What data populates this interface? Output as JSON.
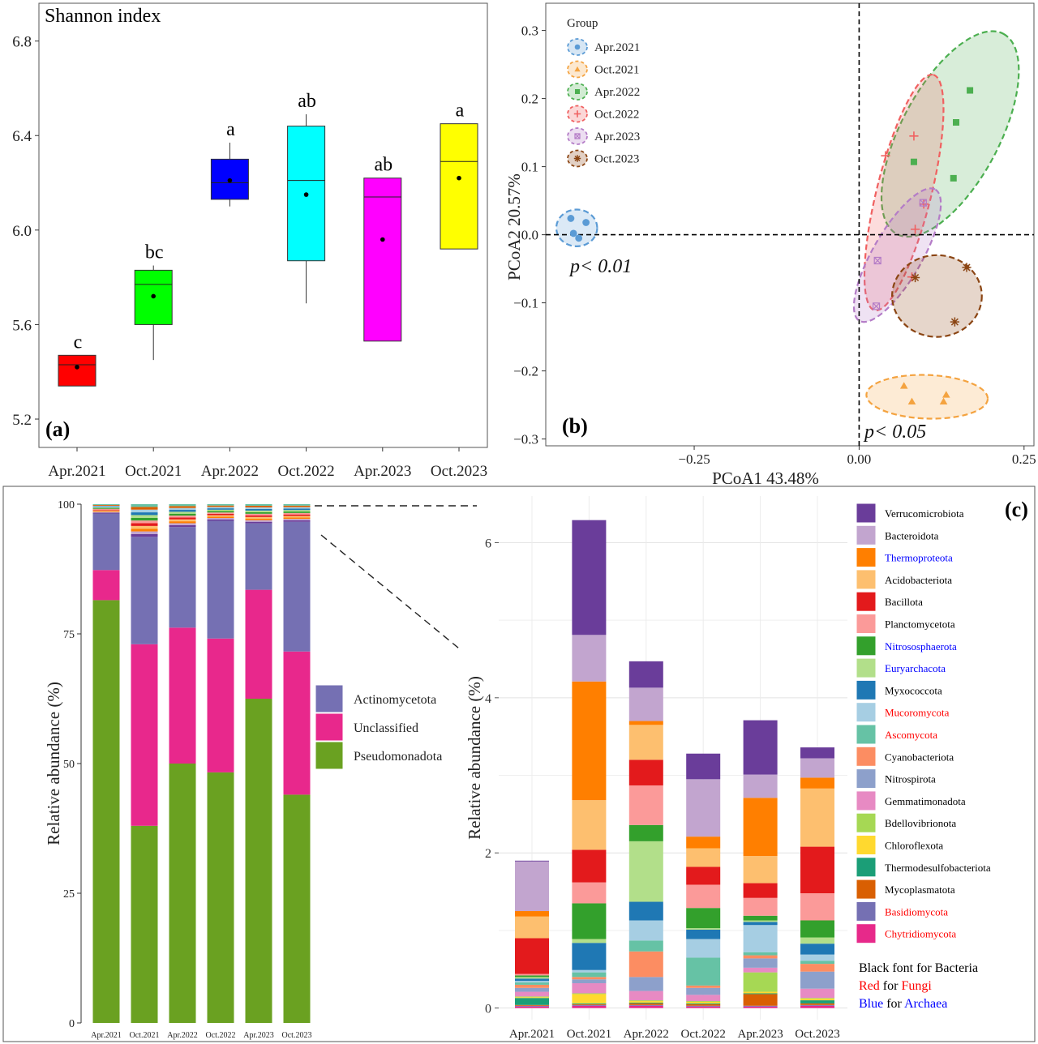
{
  "chart_data": [
    {
      "panel": "a",
      "type": "box",
      "title": "Shannon index",
      "panel_label": "(a)",
      "categories": [
        "Apr.2021",
        "Oct.2021",
        "Apr.2022",
        "Oct.2022",
        "Apr.2023",
        "Oct.2023"
      ],
      "ylim": [
        5.08,
        6.96
      ],
      "yticks": [
        5.2,
        5.6,
        6.0,
        6.4,
        6.8
      ],
      "ytick_labels": [
        "5.2",
        "5.6",
        "6.0",
        "6.4",
        "6.8"
      ],
      "boxes": [
        {
          "q1": 5.34,
          "q3": 5.47,
          "median": 5.43,
          "mean": 5.42,
          "wlo": 5.34,
          "whi": 5.47,
          "color": "#ff0000",
          "letter": "c"
        },
        {
          "q1": 5.6,
          "q3": 5.83,
          "median": 5.77,
          "mean": 5.72,
          "wlo": 5.45,
          "whi": 5.85,
          "color": "#00ff00",
          "letter": "bc"
        },
        {
          "q1": 6.13,
          "q3": 6.3,
          "median": 6.2,
          "mean": 6.21,
          "wlo": 6.1,
          "whi": 6.37,
          "color": "#0000ff",
          "letter": "a"
        },
        {
          "q1": 5.87,
          "q3": 6.44,
          "median": 6.21,
          "mean": 6.15,
          "wlo": 5.69,
          "whi": 6.49,
          "color": "#00ffff",
          "letter": "ab"
        },
        {
          "q1": 5.53,
          "q3": 6.22,
          "median": 6.14,
          "mean": 5.96,
          "wlo": 5.53,
          "whi": 6.22,
          "color": "#ff00ff",
          "letter": "ab"
        },
        {
          "q1": 5.92,
          "q3": 6.45,
          "median": 6.29,
          "mean": 6.22,
          "wlo": 5.92,
          "whi": 6.45,
          "color": "#ffff00",
          "letter": "a"
        }
      ]
    },
    {
      "panel": "b",
      "type": "scatter",
      "panel_label": "(b)",
      "xlabel": "PCoA1 43.48%",
      "ylabel": "PCoA2 20.57%",
      "xlim": [
        -0.475,
        0.265
      ],
      "ylim": [
        -0.31,
        0.34
      ],
      "xticks": [
        -0.25,
        0.0,
        0.25
      ],
      "xtick_labels": [
        "−0.25",
        "0.00",
        "0.25"
      ],
      "yticks": [
        -0.3,
        -0.2,
        -0.1,
        0.0,
        0.1,
        0.2,
        0.3
      ],
      "ytick_labels": [
        "−0.3",
        "−0.2",
        "−0.1",
        "0.0",
        "0.1",
        "0.2",
        "0.3"
      ],
      "legend_title": "Group",
      "legend_position": "top-left",
      "annotations": [
        "p< 0.01",
        "p< 0.05"
      ],
      "groups": [
        {
          "name": "Apr.2021",
          "color": "#5b9bd5",
          "marker": "circle",
          "points": [
            [
              -0.437,
              0.024
            ],
            [
              -0.414,
              0.018
            ],
            [
              -0.425,
              -0.005
            ],
            [
              -0.433,
              0.002
            ]
          ],
          "ellipse": {
            "cx": -0.428,
            "cy": 0.01,
            "rx": 0.031,
            "ry": 0.027,
            "angle": 0
          }
        },
        {
          "name": "Oct.2021",
          "color": "#f4a340",
          "marker": "triangle",
          "points": [
            [
              0.068,
              -0.222
            ],
            [
              0.08,
              -0.245
            ],
            [
              0.132,
              -0.235
            ],
            [
              0.128,
              -0.245
            ]
          ],
          "ellipse": {
            "cx": 0.103,
            "cy": -0.238,
            "rx": 0.092,
            "ry": 0.032,
            "angle": -2
          }
        },
        {
          "name": "Apr.2022",
          "color": "#4caf50",
          "marker": "square",
          "points": [
            [
              0.083,
              0.107
            ],
            [
              0.143,
              0.083
            ],
            [
              0.147,
              0.165
            ],
            [
              0.168,
              0.212
            ]
          ],
          "ellipse": {
            "cx": 0.138,
            "cy": 0.148,
            "rx": 0.172,
            "ry": 0.072,
            "angle": 62
          }
        },
        {
          "name": "Oct.2022",
          "color": "#f06060",
          "marker": "plus",
          "points": [
            [
              0.04,
              0.116
            ],
            [
              0.083,
              0.145
            ],
            [
              0.098,
              0.045
            ],
            [
              0.085,
              0.008
            ],
            [
              0.08,
              -0.062
            ]
          ],
          "ellipse": {
            "cx": 0.068,
            "cy": 0.062,
            "rx": 0.184,
            "ry": 0.04,
            "angle": 76
          }
        },
        {
          "name": "Apr.2023",
          "color": "#b47cc7",
          "marker": "boxx",
          "points": [
            [
              0.028,
              -0.038
            ],
            [
              0.026,
              -0.105
            ],
            [
              0.097,
              0.047
            ]
          ],
          "ellipse": {
            "cx": 0.058,
            "cy": -0.03,
            "rx": 0.115,
            "ry": 0.036,
            "angle": 60
          }
        },
        {
          "name": "Oct.2023",
          "color": "#8b4513",
          "marker": "star",
          "points": [
            [
              0.163,
              -0.048
            ],
            [
              0.145,
              -0.128
            ],
            [
              0.085,
              -0.063
            ]
          ],
          "ellipse": {
            "cx": 0.118,
            "cy": -0.09,
            "rx": 0.068,
            "ry": 0.06,
            "angle": 0
          }
        }
      ]
    },
    {
      "panel": "c-left",
      "type": "stacked_bar",
      "ylabel": "Relative abundance (%)",
      "ylim": [
        0,
        100
      ],
      "yticks": [
        0,
        25,
        50,
        75,
        100
      ],
      "ytick_labels": [
        "0",
        "25",
        "50",
        "75",
        "100"
      ],
      "categories": [
        "Apr.2021",
        "Oct.2021",
        "Apr.2022",
        "Oct.2022",
        "Apr.2023",
        "Oct.2023"
      ],
      "series": [
        {
          "name": "Pseudomonadota",
          "color": "#6aa121",
          "values": [
            81.5,
            38.0,
            50.0,
            48.3,
            62.5,
            44.0
          ]
        },
        {
          "name": "Unclassified",
          "color": "#e8288c",
          "values": [
            5.8,
            35.0,
            26.2,
            25.8,
            21.0,
            27.6
          ]
        },
        {
          "name": "Actinomycetota",
          "color": "#7570b3",
          "values": [
            10.9,
            20.7,
            19.4,
            22.7,
            12.8,
            25.0
          ]
        }
      ],
      "remainder_colors": [
        "#6a3d9a",
        "#c2a5cf",
        "#ff7f00",
        "#fdbf6f",
        "#e31a1c",
        "#fb9a99",
        "#33a02c",
        "#b2df8a",
        "#1f78b4",
        "#a6cee3",
        "#d95f02",
        "#66c2a5"
      ],
      "remainder_total": [
        1.8,
        6.3,
        4.4,
        3.2,
        3.7,
        3.4
      ]
    },
    {
      "panel": "c-right",
      "type": "stacked_bar",
      "panel_label": "(c)",
      "ylabel": "Relative abundance (%)",
      "ylim": [
        -0.15,
        6.6
      ],
      "yticks": [
        0,
        2,
        4,
        6
      ],
      "ytick_labels": [
        "0",
        "2",
        "4",
        "6"
      ],
      "categories": [
        "Apr.2021",
        "Oct.2021",
        "Apr.2022",
        "Oct.2022",
        "Apr.2023",
        "Oct.2023"
      ],
      "series": [
        {
          "name": "Chytridiomycota",
          "color": "#e7298a",
          "domain": "Fungi",
          "values": [
            0.02,
            0.03,
            0.03,
            0.02,
            0.02,
            0.03
          ]
        },
        {
          "name": "Basidiomycota",
          "color": "#7570b3",
          "domain": "Fungi",
          "values": [
            0.01,
            0.01,
            0.01,
            0.01,
            0.01,
            0.01
          ]
        },
        {
          "name": "Mycoplasmatota",
          "color": "#d95f02",
          "domain": "Bacteria",
          "values": [
            0.01,
            0.01,
            0.02,
            0.02,
            0.15,
            0.02
          ]
        },
        {
          "name": "Thermodesulfobacteriota",
          "color": "#1b9e77",
          "domain": "Bacteria",
          "values": [
            0.09,
            0.01,
            0.01,
            0.01,
            0.01,
            0.04
          ]
        },
        {
          "name": "Chloroflexota",
          "color": "#ffd92f",
          "domain": "Bacteria",
          "values": [
            0.01,
            0.12,
            0.02,
            0.02,
            0.02,
            0.02
          ]
        },
        {
          "name": "Bdellovibrionota",
          "color": "#a6d854",
          "domain": "Bacteria",
          "values": [
            0.01,
            0.01,
            0.01,
            0.01,
            0.25,
            0.01
          ]
        },
        {
          "name": "Gemmatimonadota",
          "color": "#e78ac3",
          "domain": "Bacteria",
          "values": [
            0.06,
            0.13,
            0.12,
            0.08,
            0.06,
            0.12
          ]
        },
        {
          "name": "Nitrospirota",
          "color": "#8da0cb",
          "domain": "Bacteria",
          "values": [
            0.05,
            0.05,
            0.18,
            0.09,
            0.12,
            0.22
          ]
        },
        {
          "name": "Cyanobacteriota",
          "color": "#fc8d62",
          "domain": "Bacteria",
          "values": [
            0.04,
            0.03,
            0.33,
            0.03,
            0.04,
            0.1
          ]
        },
        {
          "name": "Ascomycota",
          "color": "#66c2a5",
          "domain": "Fungi",
          "values": [
            0.03,
            0.06,
            0.14,
            0.36,
            0.04,
            0.04
          ]
        },
        {
          "name": "Mucoromycota",
          "color": "#a6cee3",
          "domain": "Fungi",
          "values": [
            0.02,
            0.03,
            0.26,
            0.24,
            0.35,
            0.08
          ]
        },
        {
          "name": "Myxococcota",
          "color": "#1f78b4",
          "domain": "Bacteria",
          "values": [
            0.03,
            0.35,
            0.24,
            0.12,
            0.04,
            0.14
          ]
        },
        {
          "name": "Euryarchacota",
          "color": "#b2df8a",
          "domain": "Archaea",
          "values": [
            0.02,
            0.05,
            0.78,
            0.02,
            0.02,
            0.08
          ]
        },
        {
          "name": "Nitrososphaerota",
          "color": "#33a02c",
          "domain": "Archaea",
          "values": [
            0.02,
            0.46,
            0.21,
            0.26,
            0.06,
            0.22
          ]
        },
        {
          "name": "Planctomycetota",
          "color": "#fb9a99",
          "domain": "Bacteria",
          "values": [
            0.02,
            0.27,
            0.51,
            0.3,
            0.23,
            0.35
          ]
        },
        {
          "name": "Bacillota",
          "color": "#e31a1c",
          "domain": "Bacteria",
          "values": [
            0.46,
            0.42,
            0.33,
            0.23,
            0.19,
            0.6
          ]
        },
        {
          "name": "Acidobacteriota",
          "color": "#fdbf6f",
          "domain": "Bacteria",
          "values": [
            0.28,
            0.64,
            0.45,
            0.24,
            0.35,
            0.75
          ]
        },
        {
          "name": "Thermoproteota",
          "color": "#ff7f00",
          "domain": "Archaea",
          "values": [
            0.07,
            1.53,
            0.05,
            0.15,
            0.75,
            0.14
          ]
        },
        {
          "name": "Bacteroidota",
          "color": "#c2a5cf",
          "domain": "Bacteria",
          "values": [
            0.64,
            0.6,
            0.43,
            0.74,
            0.3,
            0.25
          ]
        },
        {
          "name": "Verrucomicrobiota",
          "color": "#6a3d9a",
          "domain": "Bacteria",
          "values": [
            0.01,
            1.48,
            0.34,
            0.33,
            0.7,
            0.14
          ]
        }
      ],
      "legend_order": [
        "Verrucomicrobiota",
        "Bacteroidota",
        "Thermoproteota",
        "Acidobacteriota",
        "Bacillota",
        "Planctomycetota",
        "Nitrososphaerota",
        "Euryarchacota",
        "Myxococcota",
        "Mucoromycota",
        "Ascomycota",
        "Cyanobacteriota",
        "Nitrospirota",
        "Gemmatimonadota",
        "Bdellovibrionota",
        "Chloroflexota",
        "Thermodesulfobacteriota",
        "Mycoplasmatota",
        "Basidiomycota",
        "Chytridiomycota"
      ],
      "domain_colors": {
        "Bacteria": "#000000",
        "Fungi": "#ff0000",
        "Archaea": "#0000ff"
      },
      "note_lines": [
        {
          "a": "Black font for Bacteria",
          "b": "",
          "color_a": "#000000",
          "color_b": "#000000"
        },
        {
          "a": "Red",
          "b": " for ",
          "c": "Fungi",
          "color_a": "#ff0000",
          "color_b": "#000000",
          "color_c": "#ff0000"
        },
        {
          "a": "Blue",
          "b": " for ",
          "c": "Archaea",
          "color_a": "#0000ff",
          "color_b": "#000000",
          "color_c": "#0000ff"
        }
      ]
    }
  ]
}
